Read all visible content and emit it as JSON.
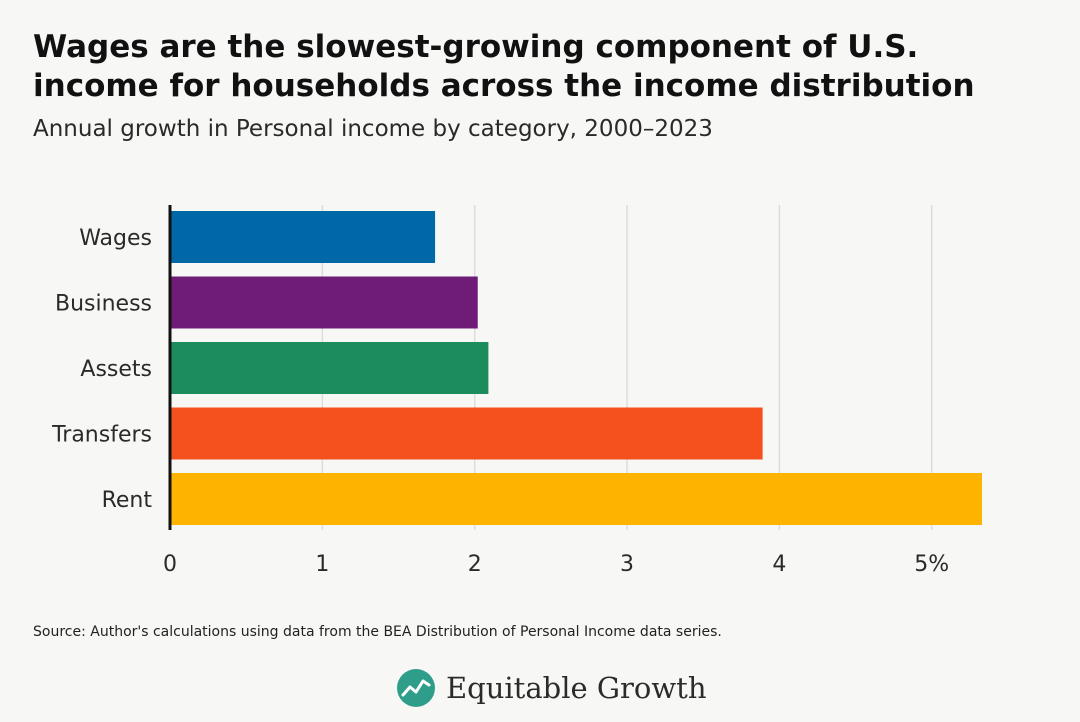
{
  "header": {
    "title": "Wages are the slowest-growing component of U.S. income for households across the income distribution",
    "subtitle": "Annual growth in Personal income by category, 2000–2023"
  },
  "footer": {
    "source": "Source: Author's calculations using data from the BEA Distribution of Personal Income data series.",
    "brand": "Equitable Growth"
  },
  "colors": {
    "Wages": "#0168a8",
    "Business": "#6e1c76",
    "Assets": "#1c8c5c",
    "Transfers": "#f4511f",
    "Rent": "#fdb300",
    "logo": "#2e9e8a"
  },
  "chart_data": {
    "type": "bar",
    "orientation": "horizontal",
    "title": "Wages are the slowest-growing component of U.S. income for households across the income distribution",
    "subtitle": "Annual growth in Personal income by category, 2000–2023",
    "categories": [
      "Wages",
      "Business",
      "Assets",
      "Transfers",
      "Rent"
    ],
    "values": [
      1.74,
      2.02,
      2.09,
      3.89,
      5.33
    ],
    "xlabel": "",
    "ylabel": "",
    "xlim": [
      0,
      5.33
    ],
    "xticks": [
      0,
      1,
      2,
      3,
      4,
      5
    ],
    "xtick_labels": [
      "0",
      "1",
      "2",
      "3",
      "4",
      "5%"
    ],
    "grid": "vertical",
    "legend": "none"
  }
}
